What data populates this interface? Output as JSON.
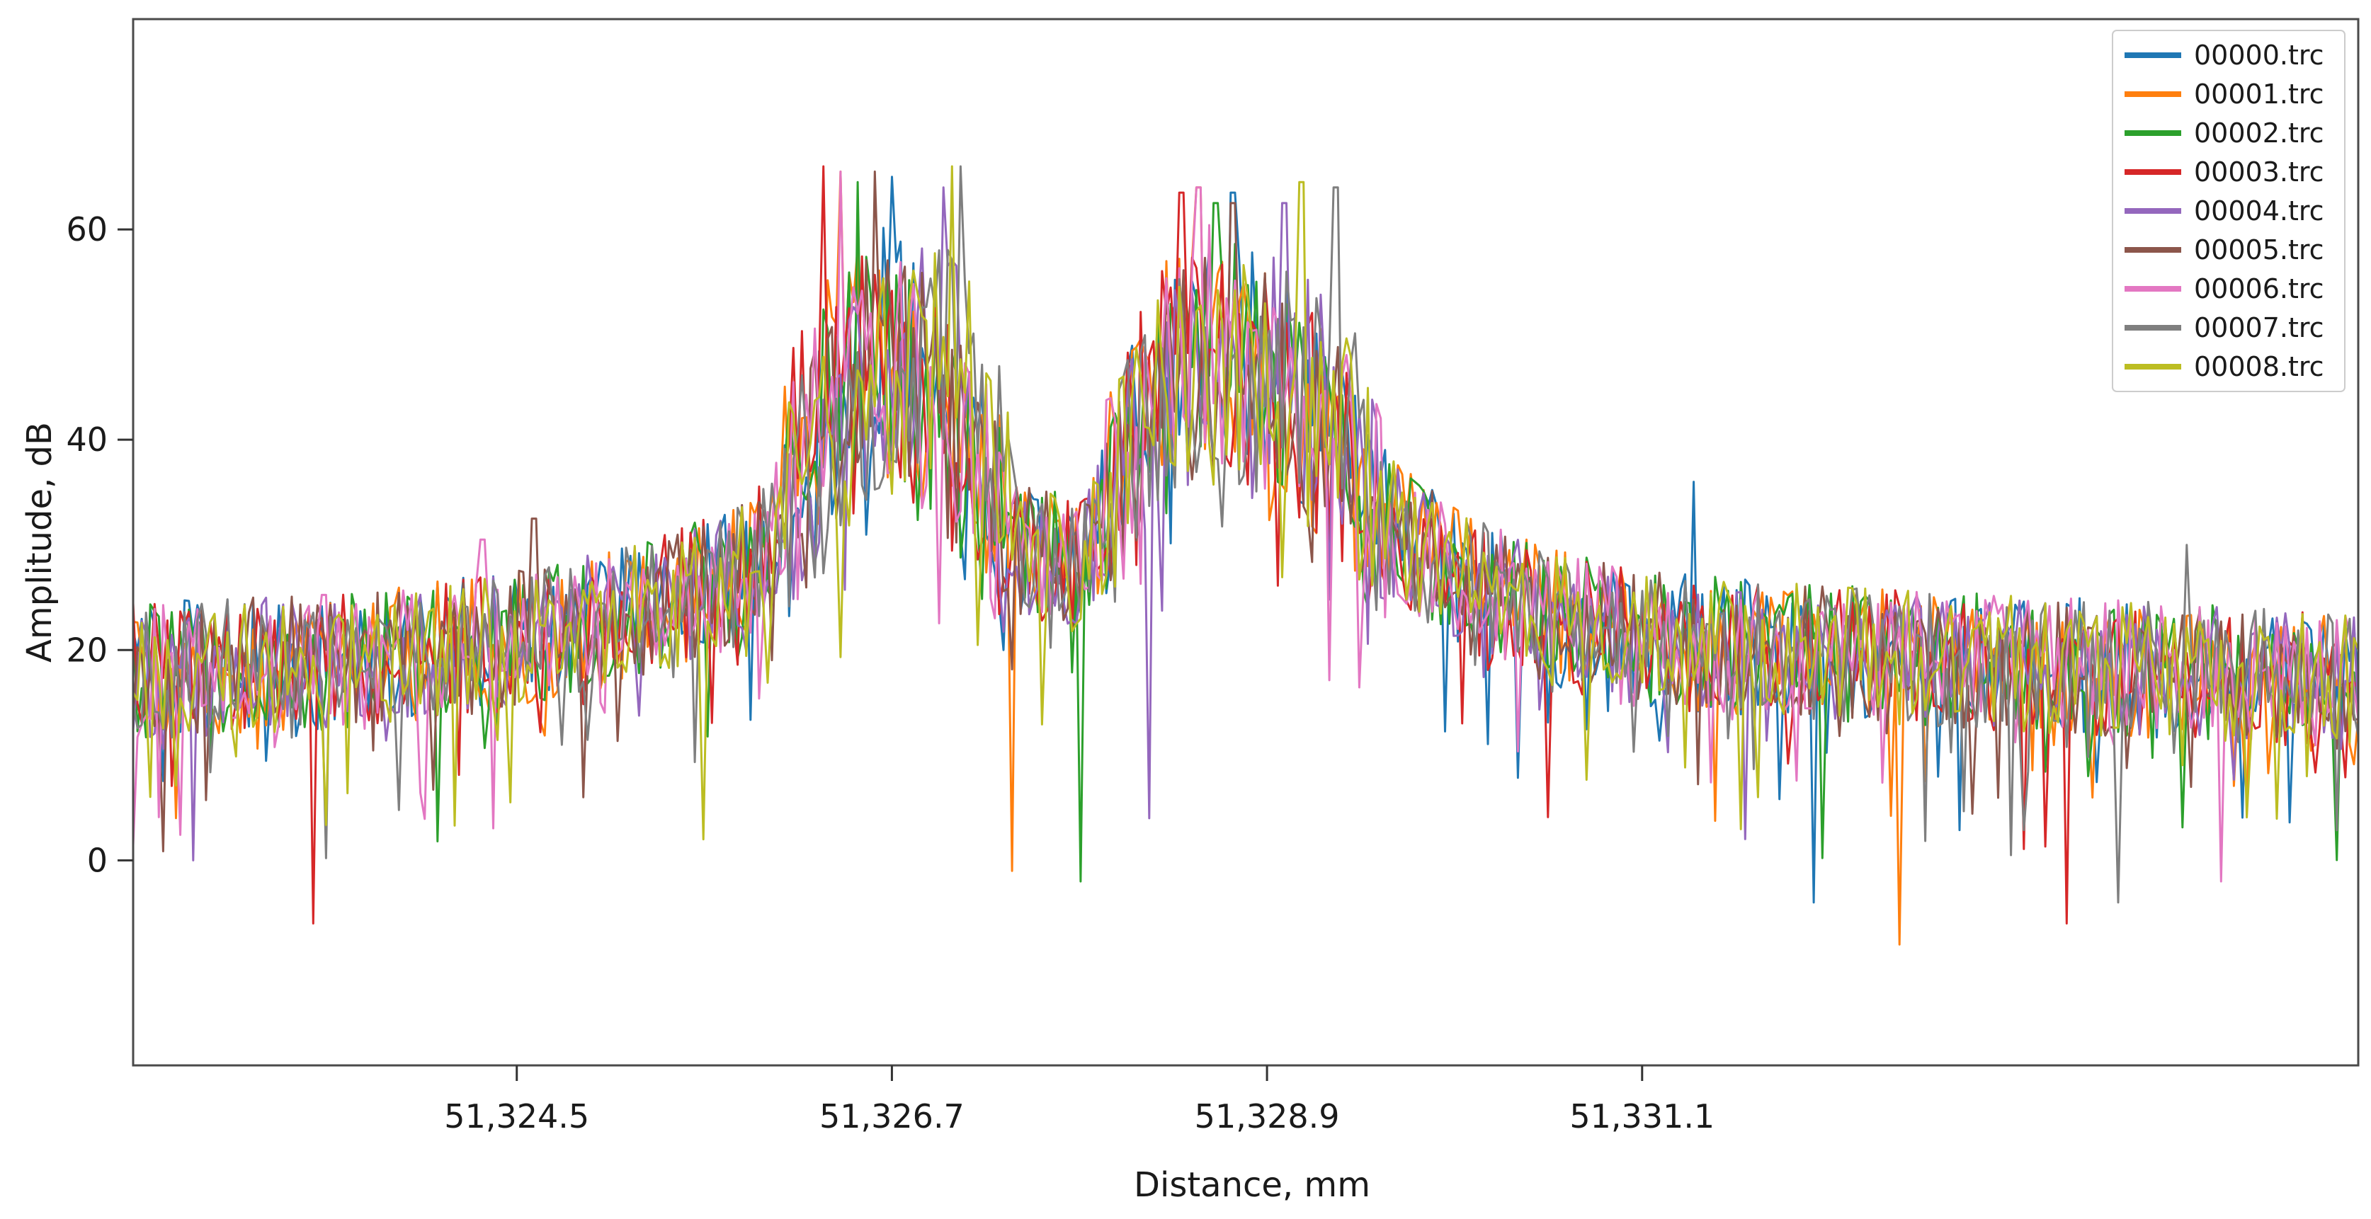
{
  "chart_data": {
    "type": "line",
    "title": "",
    "xlabel": "Distance, mm",
    "ylabel": "Amplitude, dB",
    "xlim": [
      51322.25,
      51335.3
    ],
    "ylim": [
      -19.5,
      80
    ],
    "xticks": [
      51324.5,
      51326.7,
      51328.9,
      51331.1
    ],
    "xtick_labels": [
      "51,324.5",
      "51,326.7",
      "51,328.9",
      "51,331.1"
    ],
    "yticks": [
      0,
      20,
      40,
      60
    ],
    "ytick_labels": [
      "0",
      "20",
      "40",
      "60"
    ],
    "grid": false,
    "legend_position": "top-right",
    "envelope": {
      "x": [
        51322.25,
        51323.5,
        51324.5,
        51325.3,
        51325.9,
        51326.2,
        51326.5,
        51326.75,
        51327.0,
        51327.4,
        51327.8,
        51328.1,
        51328.4,
        51328.8,
        51329.2,
        51329.6,
        51330.1,
        51330.6,
        51331.1,
        51332.0,
        51333.0,
        51334.2,
        51335.3
      ],
      "y": [
        18,
        19,
        21,
        24,
        28,
        36,
        44,
        46,
        42,
        30,
        28,
        38,
        46,
        46,
        42,
        32,
        26,
        23,
        21,
        20,
        19,
        18,
        17
      ]
    },
    "series": [
      {
        "name": "00000.trc",
        "color": "#1f77b4",
        "peak_pos": [
          51326.7,
          51328.7
        ],
        "peak_val": [
          65,
          63.5
        ],
        "spike": [
          51331.4,
          36
        ],
        "dip": [
          51332.1,
          -4
        ]
      },
      {
        "name": "00001.trc",
        "color": "#ff7f0e",
        "peak_pos": [
          51326.4,
          51328.5
        ],
        "peak_val": [
          65.5,
          64
        ],
        "spike": [
          51332.6,
          -8
        ],
        "dip": [
          51327.4,
          -1
        ]
      },
      {
        "name": "00002.trc",
        "color": "#2ca02c",
        "peak_pos": [
          51326.5,
          51328.6
        ],
        "peak_val": [
          64.5,
          62.5
        ],
        "spike": [
          51327.8,
          -2
        ],
        "dip": [
          51323.9,
          14
        ]
      },
      {
        "name": "00003.trc",
        "color": "#d62728",
        "peak_pos": [
          51326.3,
          51328.4
        ],
        "peak_val": [
          66,
          63.5
        ],
        "spike": [
          51323.3,
          -6
        ],
        "dip": [
          51333.6,
          -6
        ]
      },
      {
        "name": "00004.trc",
        "color": "#9467bd",
        "peak_pos": [
          51327.0,
          51329.0
        ],
        "peak_val": [
          64,
          62.5
        ],
        "spike": [
          51328.2,
          4
        ],
        "dip": [
          51322.6,
          0
        ]
      },
      {
        "name": "00005.trc",
        "color": "#8c564b",
        "peak_pos": [
          51326.6,
          51328.7
        ],
        "peak_val": [
          65.5,
          62.5
        ],
        "spike": [
          51324.6,
          32.5
        ],
        "dip": [
          51324.9,
          6
        ]
      },
      {
        "name": "00006.trc",
        "color": "#e377c2",
        "peak_pos": [
          51326.4,
          51328.5
        ],
        "peak_val": [
          65.5,
          64
        ],
        "spike": [
          51324.3,
          30.5
        ],
        "dip": [
          51334.5,
          -2
        ]
      },
      {
        "name": "00007.trc",
        "color": "#7f7f7f",
        "peak_pos": [
          51327.1,
          51329.3
        ],
        "peak_val": [
          66,
          64
        ],
        "spike": [
          51334.3,
          30
        ],
        "dip": [
          51333.9,
          -4
        ]
      },
      {
        "name": "00008.trc",
        "color": "#bcbd22",
        "peak_pos": [
          51327.05,
          51329.1
        ],
        "peak_val": [
          66,
          64.5
        ],
        "spike": [
          51325.6,
          2
        ],
        "dip": [
          51335.0,
          8
        ]
      }
    ]
  }
}
